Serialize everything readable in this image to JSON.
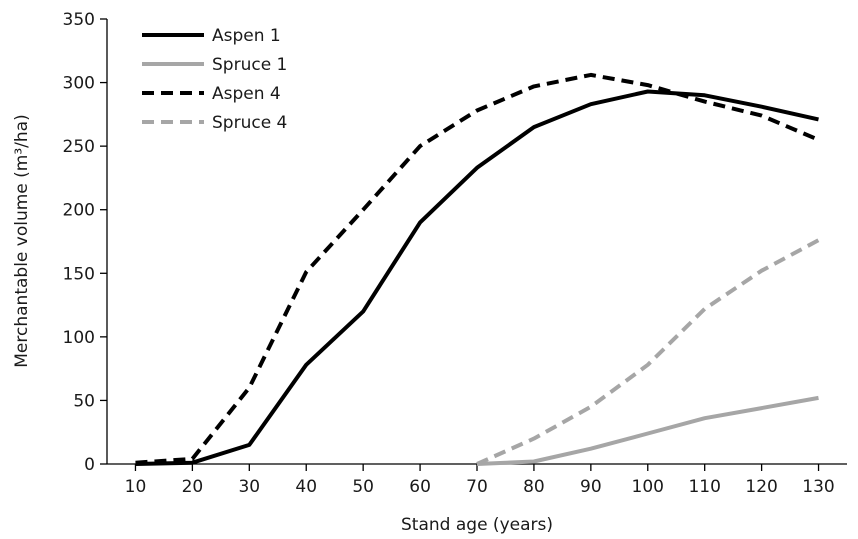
{
  "chart_data": {
    "type": "line",
    "xlabel": "Stand age (years)",
    "ylabel": "Merchantable volume (m³/ha)",
    "x": [
      10,
      20,
      30,
      40,
      50,
      60,
      70,
      80,
      90,
      100,
      110,
      120,
      130
    ],
    "xlim": [
      5,
      135
    ],
    "ylim": [
      0,
      350
    ],
    "yticks": [
      0,
      50,
      100,
      150,
      200,
      250,
      300,
      350
    ],
    "grid": false,
    "legend_position": "top-left",
    "series": [
      {
        "name": "Aspen 1",
        "color": "#000000",
        "dash": "solid",
        "points": [
          [
            10,
            0
          ],
          [
            20,
            1
          ],
          [
            30,
            15
          ],
          [
            40,
            78
          ],
          [
            50,
            120
          ],
          [
            60,
            190
          ],
          [
            70,
            233
          ],
          [
            80,
            265
          ],
          [
            90,
            283
          ],
          [
            100,
            293
          ],
          [
            110,
            290
          ],
          [
            120,
            281
          ],
          [
            130,
            271
          ]
        ]
      },
      {
        "name": "Spruce 1",
        "color": "#a6a6a6",
        "dash": "solid",
        "points": [
          [
            70,
            0
          ],
          [
            80,
            2
          ],
          [
            90,
            12
          ],
          [
            100,
            24
          ],
          [
            110,
            36
          ],
          [
            120,
            44
          ],
          [
            130,
            52
          ]
        ]
      },
      {
        "name": "Aspen 4",
        "color": "#000000",
        "dash": "dashed",
        "points": [
          [
            10,
            1
          ],
          [
            20,
            4
          ],
          [
            30,
            60
          ],
          [
            40,
            151
          ],
          [
            50,
            200
          ],
          [
            60,
            250
          ],
          [
            70,
            278
          ],
          [
            80,
            297
          ],
          [
            90,
            306
          ],
          [
            100,
            298
          ],
          [
            110,
            285
          ],
          [
            120,
            274
          ],
          [
            130,
            255
          ]
        ]
      },
      {
        "name": "Spruce 4",
        "color": "#a6a6a6",
        "dash": "dashed",
        "points": [
          [
            70,
            0
          ],
          [
            80,
            20
          ],
          [
            90,
            45
          ],
          [
            100,
            78
          ],
          [
            110,
            122
          ],
          [
            120,
            152
          ],
          [
            130,
            176
          ]
        ]
      }
    ]
  }
}
